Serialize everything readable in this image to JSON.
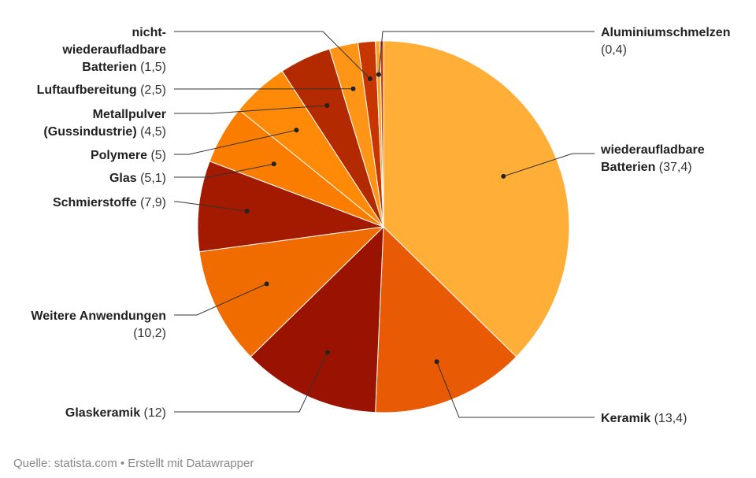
{
  "chart_data": {
    "type": "pie",
    "title": "",
    "start_angle_deg": 0,
    "direction": "clockwise",
    "slices": [
      {
        "name": "wiederaufladbare Batterien",
        "display_value": "37,4",
        "value": 37.4,
        "color": "#ffae38",
        "label_lines": [
          "wiederaufladbare",
          "Batterien"
        ]
      },
      {
        "name": "Keramik",
        "display_value": "13,4",
        "value": 13.4,
        "color": "#e85a04",
        "label_lines": [
          "Keramik"
        ]
      },
      {
        "name": "Glaskeramik",
        "display_value": "12",
        "value": 12,
        "color": "#9a1300",
        "label_lines": [
          "Glaskeramik"
        ]
      },
      {
        "name": "Weitere Anwendungen",
        "display_value": "10,2",
        "value": 10.2,
        "color": "#f06c00",
        "label_lines": [
          "Weitere Anwendungen"
        ]
      },
      {
        "name": "Schmierstoffe",
        "display_value": "7,9",
        "value": 7.9,
        "color": "#a31a00",
        "label_lines": [
          "Schmierstoffe"
        ]
      },
      {
        "name": "Glas",
        "display_value": "5,1",
        "value": 5.1,
        "color": "#fb7d00",
        "label_lines": [
          "Glas"
        ]
      },
      {
        "name": "Polymere",
        "display_value": "5",
        "value": 5,
        "color": "#ff8a08",
        "label_lines": [
          "Polymere"
        ]
      },
      {
        "name": "Metallpulver (Gussindustrie)",
        "display_value": "4,5",
        "value": 4.5,
        "color": "#b42a00",
        "label_lines": [
          "Metallpulver",
          "(Gussindustrie)"
        ]
      },
      {
        "name": "Luftaufbereitung",
        "display_value": "2,5",
        "value": 2.5,
        "color": "#ff9516",
        "label_lines": [
          "Luftaufbereitung"
        ]
      },
      {
        "name": "nicht-wiederaufladbare Batterien",
        "display_value": "1,5",
        "value": 1.5,
        "color": "#c73500",
        "label_lines": [
          "nicht-",
          "wiederaufladbare",
          "Batterien"
        ]
      },
      {
        "name": "Aluminiumschmelzen",
        "display_value": "0,4",
        "value": 0.4,
        "color": "#ffa22a",
        "label_lines": [
          "Aluminiumschmelzen"
        ]
      },
      {
        "name": "",
        "display_value": "",
        "value": 0.3,
        "color": "#c1440e",
        "label_lines": []
      }
    ]
  },
  "footer": {
    "text": "Quelle: statista.com • Erstellt mit Datawrapper"
  }
}
